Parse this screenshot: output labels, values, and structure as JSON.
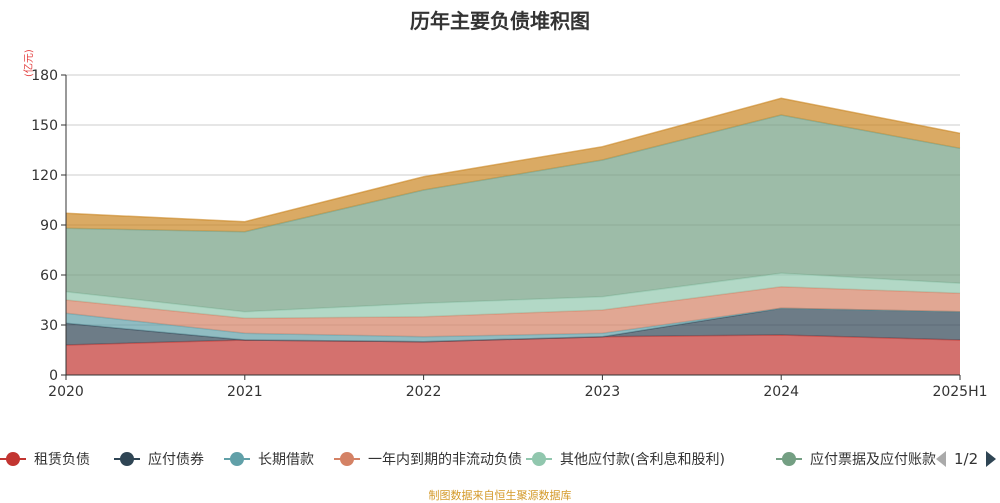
{
  "title": "历年主要负债堆积图",
  "unit_label": "(亿元)",
  "source": "制图数据来自恒生聚源数据库",
  "pager": {
    "label": "1/2"
  },
  "chart_data": {
    "type": "area",
    "stacked": true,
    "categories": [
      "2020",
      "2021",
      "2022",
      "2023",
      "2024",
      "2025H1"
    ],
    "yticks": [
      0,
      30,
      60,
      90,
      120,
      150,
      180
    ],
    "ylim": [
      0,
      180
    ],
    "grid": true,
    "legend_position": "bottom",
    "series": [
      {
        "name": "租赁负债",
        "color": "#c23531",
        "values": [
          18,
          21,
          20,
          23,
          24,
          21
        ]
      },
      {
        "name": "应付债券",
        "color": "#2f4554",
        "values": [
          13,
          0,
          0,
          0,
          16,
          17
        ]
      },
      {
        "name": "长期借款",
        "color": "#61a0a8",
        "values": [
          6,
          4,
          3,
          2,
          0,
          0
        ]
      },
      {
        "name": "一年内到期的非流动负债",
        "color": "#d48265",
        "values": [
          8,
          9,
          12,
          14,
          13,
          11
        ]
      },
      {
        "name": "其他应付款(含利息和股利)",
        "color": "#91c7ae",
        "values": [
          5,
          4,
          8,
          8,
          8,
          6
        ]
      },
      {
        "name": "应付票据及应付账款",
        "color": "#749f83",
        "values": [
          38,
          48,
          68,
          82,
          95,
          81
        ]
      },
      {
        "name": "",
        "color": "#ca8622",
        "values": [
          9,
          6,
          8,
          8,
          10,
          9
        ]
      }
    ]
  }
}
